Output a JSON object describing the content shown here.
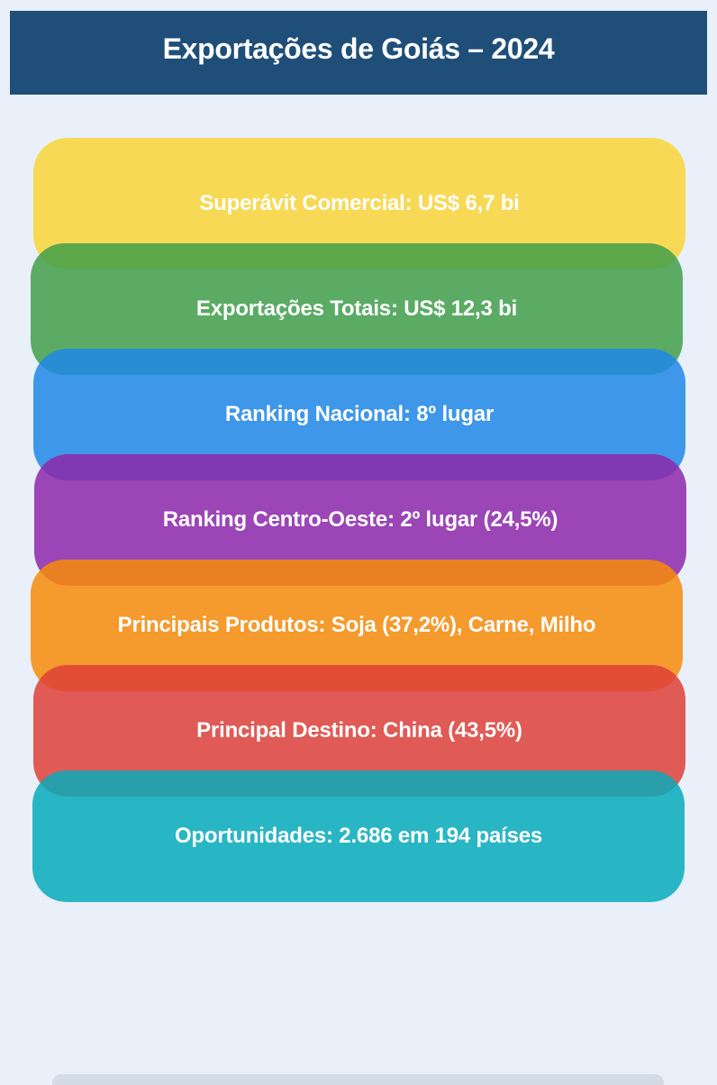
{
  "title": "Exportações de Goiás – 2024",
  "theme": {
    "page_background": "#E9F0FA",
    "header_background": "#1F4E78",
    "text_color": "#FFFFFF",
    "bar_opacity": 0.85,
    "footer_sliver_color": "#D3DBE6"
  },
  "bars": [
    {
      "label": "Superávit Comercial: US$ 6,7 bi",
      "color": "#F9D537"
    },
    {
      "label": "Exportações Totais: US$ 12,3 bi",
      "color": "#429F4A"
    },
    {
      "label": "Ranking Nacional: 8º lugar",
      "color": "#2087E5"
    },
    {
      "label": "Ranking Centro-Oeste: 2º lugar (24,5%)",
      "color": "#8D27A9"
    },
    {
      "label": "Principais Produtos: Soja (37,2%), Carne, Milho",
      "color": "#F78B08"
    },
    {
      "label": "Principal Destino: China (43,5%)",
      "color": "#DE4038"
    },
    {
      "label": "Oportunidades: 2.686 em 194 países",
      "color": "#07ACBA"
    }
  ]
}
